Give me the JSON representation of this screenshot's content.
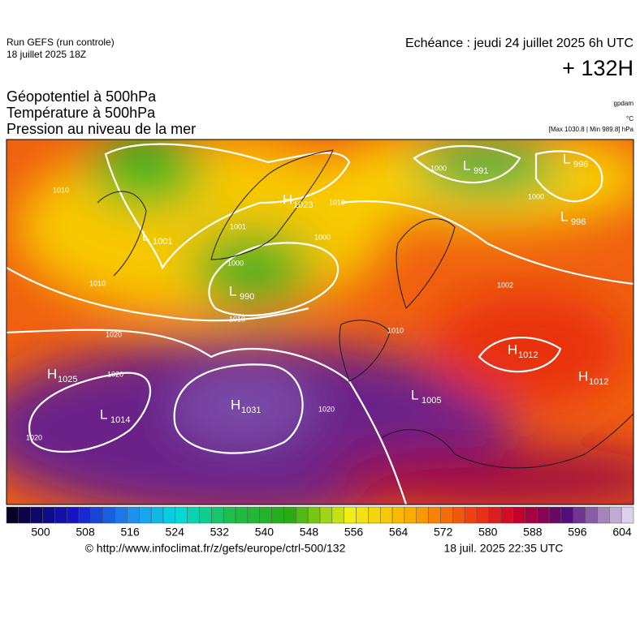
{
  "header": {
    "run": "Run GEFS (run controle)",
    "run_date": "18 juillet 2025 18Z",
    "echeance": "Echéance : jeudi 24 juillet 2025 6h UTC",
    "lead": "+ 132H"
  },
  "titles": [
    "Géopotentiel à 500hPa",
    "Température à 500hPa",
    "Pression au niveau de la mer"
  ],
  "units": {
    "geopotential": "gpdam",
    "temperature": "°C",
    "pressure": "[Max 1030.8 | Min 989.8] hPa"
  },
  "pressure_centers": [
    {
      "letter": "H",
      "value": 1025
    },
    {
      "letter": "L",
      "value": 1014
    },
    {
      "letter": "H",
      "value": 1031
    },
    {
      "letter": "L",
      "value": 990
    },
    {
      "letter": "H",
      "value": 1023
    },
    {
      "letter": "L",
      "value": 1001
    },
    {
      "letter": "L",
      "value": 991
    },
    {
      "letter": "L",
      "value": 996
    },
    {
      "letter": "L",
      "value": 996
    },
    {
      "letter": "H",
      "value": 1012
    },
    {
      "letter": "H",
      "value": 1012
    },
    {
      "letter": "L",
      "value": 1005
    }
  ],
  "contour_labels": [
    1020,
    1020,
    1020,
    1010,
    1010,
    1010,
    1001,
    1000,
    1000,
    1010,
    1000,
    1000,
    1002,
    1020,
    1010
  ],
  "colorbar": {
    "ticks": [
      500,
      508,
      516,
      524,
      532,
      540,
      548,
      556,
      564,
      572,
      580,
      588,
      596,
      604
    ]
  },
  "footer": {
    "url": "© http://www.infoclimat.fr/z/gefs/europe/ctrl-500/132",
    "timestamp": "18 juil. 2025 22:35 UTC"
  }
}
